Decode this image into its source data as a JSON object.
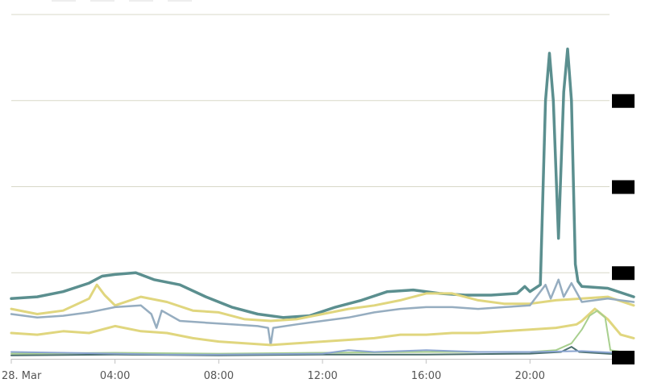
{
  "chart_data": {
    "type": "line",
    "title": "",
    "xlabel": "",
    "ylabel": "",
    "x_tick_labels": [
      "28. Mar",
      "04:00",
      "08:00",
      "12:00",
      "16:00",
      "20:00"
    ],
    "x_tick_hours": [
      0,
      4,
      8,
      12,
      16,
      20
    ],
    "x_range_hours": [
      0,
      24
    ],
    "y_range": [
      0,
      400
    ],
    "y_gridlines": [
      0,
      100,
      200,
      300,
      400
    ],
    "y_tick_labels_redacted": true,
    "grid": "horizontal",
    "legend": "none",
    "series": [
      {
        "color": "#5b8f8f",
        "width": 3.5,
        "points": [
          [
            0,
            70
          ],
          [
            1,
            72
          ],
          [
            2,
            78
          ],
          [
            3,
            88
          ],
          [
            3.5,
            96
          ],
          [
            4,
            98
          ],
          [
            4.8,
            100
          ],
          [
            5.5,
            92
          ],
          [
            6.5,
            86
          ],
          [
            7.5,
            72
          ],
          [
            8.5,
            60
          ],
          [
            9.5,
            52
          ],
          [
            10.5,
            48
          ],
          [
            11.5,
            50
          ],
          [
            12.5,
            60
          ],
          [
            13.5,
            68
          ],
          [
            14.5,
            78
          ],
          [
            15.5,
            80
          ],
          [
            16.5,
            76
          ],
          [
            17.5,
            74
          ],
          [
            18.5,
            74
          ],
          [
            19.5,
            76
          ],
          [
            19.8,
            84
          ],
          [
            20,
            78
          ],
          [
            20.4,
            86
          ],
          [
            20.6,
            300
          ],
          [
            20.75,
            355
          ],
          [
            20.9,
            300
          ],
          [
            21.1,
            140
          ],
          [
            21.3,
            310
          ],
          [
            21.45,
            360
          ],
          [
            21.6,
            300
          ],
          [
            21.75,
            110
          ],
          [
            21.85,
            90
          ],
          [
            22,
            84
          ],
          [
            23,
            82
          ],
          [
            24,
            72
          ]
        ]
      },
      {
        "color": "#e0d67e",
        "width": 3,
        "points": [
          [
            0,
            58
          ],
          [
            1,
            52
          ],
          [
            2,
            56
          ],
          [
            3,
            70
          ],
          [
            3.3,
            86
          ],
          [
            3.6,
            74
          ],
          [
            4,
            62
          ],
          [
            5,
            72
          ],
          [
            6,
            66
          ],
          [
            7,
            56
          ],
          [
            8,
            54
          ],
          [
            9,
            46
          ],
          [
            10,
            44
          ],
          [
            11,
            46
          ],
          [
            12,
            52
          ],
          [
            13,
            58
          ],
          [
            14,
            62
          ],
          [
            15,
            68
          ],
          [
            16,
            76
          ],
          [
            17,
            76
          ],
          [
            18,
            68
          ],
          [
            19,
            64
          ],
          [
            20,
            64
          ],
          [
            21,
            68
          ],
          [
            22,
            70
          ],
          [
            23,
            72
          ],
          [
            24,
            62
          ]
        ]
      },
      {
        "color": "#96adc0",
        "width": 2.5,
        "points": [
          [
            0,
            52
          ],
          [
            1,
            48
          ],
          [
            2,
            50
          ],
          [
            3,
            54
          ],
          [
            4,
            60
          ],
          [
            5,
            62
          ],
          [
            5.4,
            52
          ],
          [
            5.6,
            36
          ],
          [
            5.8,
            56
          ],
          [
            6.5,
            44
          ],
          [
            7.5,
            42
          ],
          [
            8.5,
            40
          ],
          [
            9.5,
            38
          ],
          [
            9.9,
            36
          ],
          [
            10,
            16
          ],
          [
            10.1,
            36
          ],
          [
            11,
            40
          ],
          [
            12,
            44
          ],
          [
            13,
            48
          ],
          [
            14,
            54
          ],
          [
            15,
            58
          ],
          [
            16,
            60
          ],
          [
            17,
            60
          ],
          [
            18,
            58
          ],
          [
            19,
            60
          ],
          [
            20,
            62
          ],
          [
            20.6,
            86
          ],
          [
            20.8,
            70
          ],
          [
            21.1,
            92
          ],
          [
            21.3,
            72
          ],
          [
            21.6,
            88
          ],
          [
            22,
            66
          ],
          [
            23,
            70
          ],
          [
            24,
            66
          ]
        ]
      },
      {
        "color": "#e0d67e",
        "width": 3,
        "points": [
          [
            0,
            30
          ],
          [
            1,
            28
          ],
          [
            2,
            32
          ],
          [
            3,
            30
          ],
          [
            4,
            38
          ],
          [
            5,
            32
          ],
          [
            6,
            30
          ],
          [
            7,
            24
          ],
          [
            8,
            20
          ],
          [
            9,
            18
          ],
          [
            10,
            16
          ],
          [
            11,
            18
          ],
          [
            12,
            20
          ],
          [
            13,
            22
          ],
          [
            14,
            24
          ],
          [
            15,
            28
          ],
          [
            16,
            28
          ],
          [
            17,
            30
          ],
          [
            18,
            30
          ],
          [
            19,
            32
          ],
          [
            20,
            34
          ],
          [
            21,
            36
          ],
          [
            21.8,
            40
          ],
          [
            22,
            44
          ],
          [
            22.5,
            58
          ],
          [
            23,
            46
          ],
          [
            23.5,
            28
          ],
          [
            24,
            24
          ]
        ]
      },
      {
        "color": "#a8cf8e",
        "width": 2,
        "points": [
          [
            0,
            6
          ],
          [
            4,
            7
          ],
          [
            8,
            6
          ],
          [
            12,
            7
          ],
          [
            16,
            8
          ],
          [
            20,
            8
          ],
          [
            21,
            10
          ],
          [
            21.6,
            18
          ],
          [
            22,
            34
          ],
          [
            22.3,
            50
          ],
          [
            22.6,
            56
          ],
          [
            22.9,
            48
          ],
          [
            23.1,
            10
          ],
          [
            24,
            6
          ]
        ]
      },
      {
        "color": "#4a6e6e",
        "width": 2,
        "points": [
          [
            0,
            4
          ],
          [
            4,
            5
          ],
          [
            8,
            4
          ],
          [
            12,
            5
          ],
          [
            16,
            5
          ],
          [
            20,
            6
          ],
          [
            21.2,
            8
          ],
          [
            21.6,
            14
          ],
          [
            21.9,
            8
          ],
          [
            24,
            4
          ]
        ]
      },
      {
        "color": "#8aa4d0",
        "width": 2,
        "points": [
          [
            0,
            8
          ],
          [
            2,
            7
          ],
          [
            4,
            6
          ],
          [
            6,
            5
          ],
          [
            8,
            5
          ],
          [
            12,
            6
          ],
          [
            13,
            10
          ],
          [
            14,
            8
          ],
          [
            16,
            10
          ],
          [
            18,
            8
          ],
          [
            20,
            8
          ],
          [
            22,
            9
          ],
          [
            24,
            6
          ]
        ]
      }
    ]
  }
}
